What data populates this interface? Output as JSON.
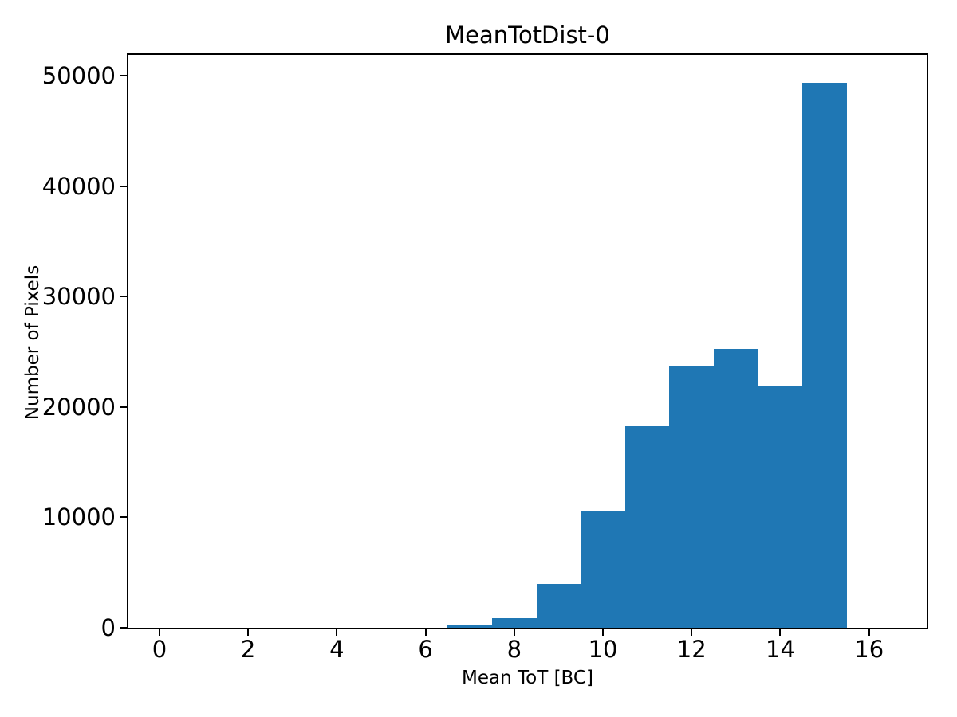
{
  "figure": {
    "background_color": "#ffffff",
    "axis_color": "#000000"
  },
  "chart_data": {
    "type": "bar",
    "subtype": "histogram",
    "title": "MeanTotDist-0",
    "xlabel": "Mean ToT [BC]",
    "ylabel": "Number of Pixels",
    "bar_color": "#1f77b4",
    "bin_edges": [
      6.5,
      7.5,
      8.5,
      9.5,
      10.5,
      11.5,
      12.5,
      13.5,
      14.5,
      15.5
    ],
    "values": [
      200,
      850,
      3950,
      10600,
      18250,
      23750,
      25250,
      21850,
      49400
    ],
    "xlim": [
      -0.7,
      17.3
    ],
    "ylim": [
      0,
      51900
    ],
    "xticks": [
      0,
      2,
      4,
      6,
      8,
      10,
      12,
      14,
      16
    ],
    "yticks": [
      0,
      10000,
      20000,
      30000,
      40000,
      50000
    ],
    "xtick_labels": [
      "0",
      "2",
      "4",
      "6",
      "8",
      "10",
      "12",
      "14",
      "16"
    ],
    "ytick_labels": [
      "0",
      "10000",
      "20000",
      "30000",
      "40000",
      "50000"
    ],
    "grid": false,
    "legend_position": "none"
  }
}
